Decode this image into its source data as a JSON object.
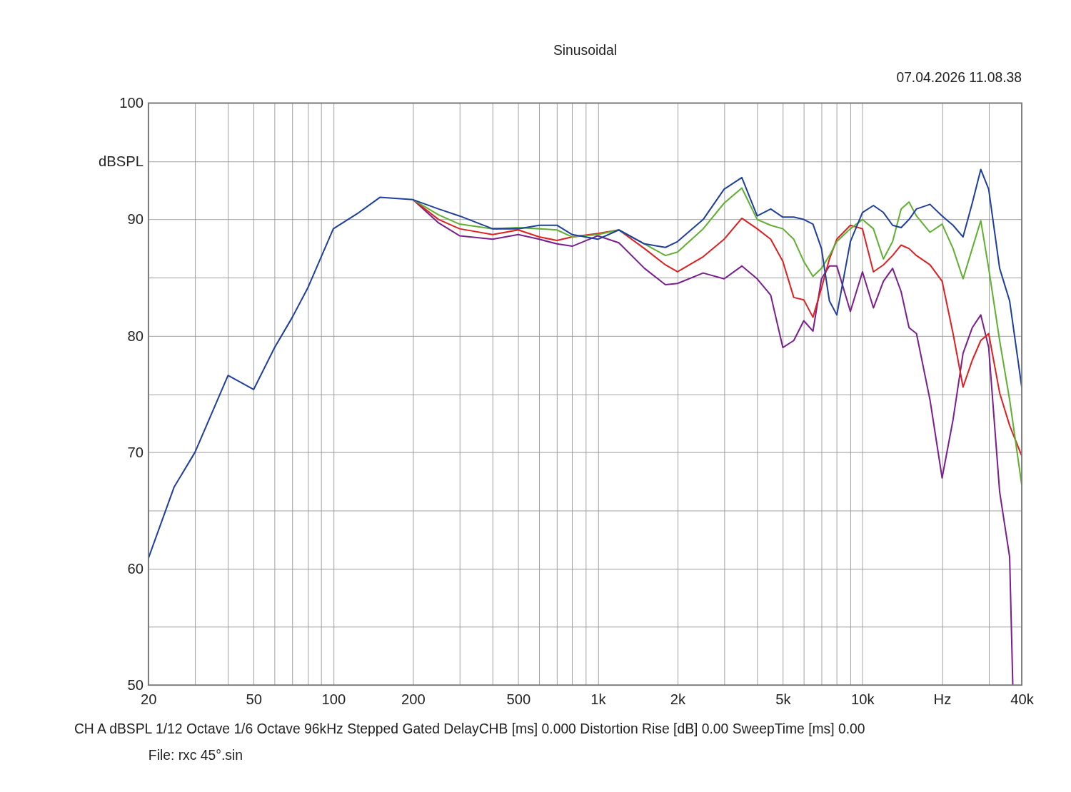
{
  "chart_data": {
    "type": "line",
    "title": "Sinusoidal",
    "log": "x",
    "grid": true,
    "legend": false,
    "marker": "none",
    "line_style": "solid",
    "xlim": [
      20,
      40000
    ],
    "ylim": [
      50,
      100
    ],
    "xticks": [
      20,
      {
        "value": 30,
        "label": null
      },
      {
        "value": 40,
        "label": null
      },
      50,
      {
        "value": 60,
        "label": null
      },
      {
        "value": 70,
        "label": null
      },
      {
        "value": 80,
        "label": null
      },
      {
        "value": 90,
        "label": null
      },
      100,
      200,
      {
        "value": 300,
        "label": null
      },
      {
        "value": 400,
        "label": null
      },
      500,
      {
        "value": 600,
        "label": null
      },
      {
        "value": 700,
        "label": null
      },
      {
        "value": 800,
        "label": null
      },
      {
        "value": 900,
        "label": null
      },
      {
        "value": 1000,
        "label": "1k"
      },
      {
        "value": 2000,
        "label": "2k"
      },
      {
        "value": 3000,
        "label": null
      },
      {
        "value": 4000,
        "label": null
      },
      {
        "value": 5000,
        "label": "5k"
      },
      {
        "value": 6000,
        "label": null
      },
      {
        "value": 7000,
        "label": null
      },
      {
        "value": 8000,
        "label": null
      },
      {
        "value": 9000,
        "label": null
      },
      {
        "value": 10000,
        "label": "10k"
      },
      {
        "value": 20000,
        "label": "Hz"
      },
      {
        "value": 30000,
        "label": null
      },
      {
        "value": 40000,
        "label": "40k"
      }
    ],
    "yticks": [
      50,
      {
        "value": 55,
        "label": null
      },
      60,
      {
        "value": 65,
        "label": null
      },
      70,
      {
        "value": 75,
        "label": null
      },
      80,
      {
        "value": 85,
        "label": null
      },
      90,
      {
        "value": 95,
        "label": "dBSPL"
      },
      100
    ],
    "x": [
      20,
      25,
      30,
      40,
      50,
      60,
      70,
      80,
      100,
      125,
      150,
      200,
      250,
      300,
      400,
      500,
      600,
      700,
      800,
      1000,
      1200,
      1500,
      1800,
      2000,
      2500,
      3000,
      3500,
      4000,
      4500,
      5000,
      5500,
      6000,
      6500,
      7000,
      7500,
      8000,
      9000,
      10000,
      11000,
      12000,
      13000,
      14000,
      15000,
      16000,
      18000,
      20000,
      22000,
      24000,
      26000,
      28000,
      30000,
      33000,
      36000,
      40000
    ],
    "series": [
      {
        "color": "#7b1f8f",
        "x": [
          200,
          250,
          300,
          400,
          500,
          600,
          700,
          800,
          1000,
          1200,
          1500,
          1800,
          2000,
          2500,
          3000,
          3500,
          4000,
          4500,
          5000,
          5500,
          6000,
          6500,
          7000,
          7500,
          8000,
          9000,
          10000,
          11000,
          12000,
          13000,
          14000,
          15000,
          16000,
          18000,
          20000,
          22000,
          24000,
          26000,
          28000,
          30000,
          33000,
          36000,
          37000
        ],
        "values": [
          91.7,
          89.7,
          88.6,
          88.3,
          88.7,
          88.3,
          87.9,
          87.7,
          88.6,
          88.0,
          85.8,
          84.4,
          84.5,
          85.4,
          84.9,
          86.0,
          84.9,
          83.5,
          79.0,
          79.6,
          81.3,
          80.4,
          84.9,
          86.0,
          86.0,
          82.1,
          85.5,
          82.4,
          84.7,
          85.8,
          83.8,
          80.7,
          80.2,
          74.5,
          67.8,
          72.8,
          78.5,
          80.7,
          81.8,
          79.0,
          66.6,
          61.0,
          50.0
        ]
      },
      {
        "color": "#e02020",
        "x": [
          200,
          250,
          300,
          400,
          500,
          600,
          700,
          800,
          1000,
          1200,
          1500,
          1800,
          2000,
          2500,
          3000,
          3500,
          4000,
          4500,
          5000,
          5500,
          6000,
          6500,
          7000,
          7500,
          8000,
          9000,
          10000,
          11000,
          12000,
          13000,
          14000,
          15000,
          16000,
          18000,
          20000,
          22000,
          24000,
          26000,
          28000,
          30000,
          33000,
          36000,
          40000
        ],
        "values": [
          91.7,
          90.0,
          89.2,
          88.7,
          89.1,
          88.5,
          88.2,
          88.5,
          88.8,
          89.1,
          87.5,
          86.1,
          85.5,
          86.8,
          88.3,
          90.1,
          89.2,
          88.3,
          86.4,
          83.3,
          83.1,
          81.6,
          84.1,
          86.6,
          88.3,
          89.5,
          89.2,
          85.5,
          86.1,
          86.9,
          87.8,
          87.5,
          86.9,
          86.1,
          84.7,
          80.2,
          75.6,
          77.9,
          79.6,
          80.2,
          75.1,
          72.3,
          69.7
        ]
      },
      {
        "color": "#5fb030",
        "x": [
          200,
          250,
          300,
          400,
          500,
          600,
          700,
          800,
          1000,
          1200,
          1500,
          1800,
          2000,
          2500,
          3000,
          3500,
          4000,
          4500,
          5000,
          5500,
          6000,
          6500,
          7000,
          7500,
          8000,
          9000,
          10000,
          11000,
          12000,
          13000,
          14000,
          15000,
          16000,
          18000,
          20000,
          22000,
          24000,
          26000,
          28000,
          30000,
          33000,
          36000,
          40000
        ],
        "values": [
          91.7,
          90.4,
          89.6,
          89.2,
          89.3,
          89.2,
          89.1,
          88.5,
          88.7,
          89.1,
          87.9,
          86.9,
          87.2,
          89.2,
          91.4,
          92.7,
          90.0,
          89.5,
          89.2,
          88.3,
          86.4,
          85.1,
          85.8,
          86.9,
          88.1,
          89.2,
          90.0,
          89.2,
          86.6,
          88.1,
          90.9,
          91.5,
          90.3,
          88.9,
          89.6,
          87.5,
          84.9,
          87.5,
          89.9,
          85.8,
          79.6,
          74.5,
          67.2
        ]
      },
      {
        "color": "#1f3f9f",
        "values": [
          60.9,
          67.0,
          70.0,
          76.6,
          75.4,
          79.0,
          81.6,
          84.1,
          89.2,
          90.6,
          91.9,
          91.7,
          90.9,
          90.3,
          89.2,
          89.2,
          89.5,
          89.5,
          88.7,
          88.3,
          89.1,
          87.9,
          87.6,
          88.1,
          90.0,
          92.6,
          93.6,
          90.3,
          90.9,
          90.2,
          90.2,
          90.0,
          89.6,
          87.5,
          83.0,
          81.8,
          88.1,
          90.6,
          91.2,
          90.6,
          89.5,
          89.3,
          90.0,
          90.9,
          91.3,
          90.3,
          89.5,
          88.5,
          91.4,
          94.3,
          92.6,
          85.8,
          83.0,
          75.6
        ]
      }
    ],
    "annotations": [
      "07.04.2026 11.08.38",
      "CH A   dBSPL   1/12 Octave   1/6 Octave   96kHz   Stepped   Gated   DelayCHB [ms] 0.000   Distortion Rise [dB] 0.00   SweepTime [ms] 0.00",
      "File: rxc 45°.sin"
    ]
  }
}
